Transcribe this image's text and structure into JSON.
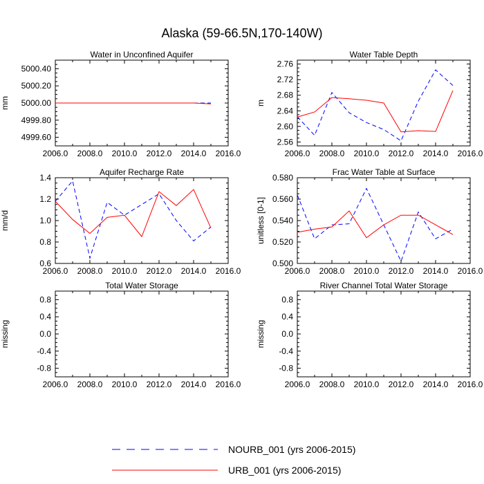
{
  "figure": {
    "title": "Alaska (59-66.5N,170-140W)"
  },
  "legend": {
    "placement": "bottom-center",
    "entries": [
      {
        "name": "NOURB_001 (yrs 2006-2015)",
        "color": "#0000ff",
        "style": "dashed"
      },
      {
        "name": "URB_001 (yrs 2006-2015)",
        "color": "#ff0000",
        "style": "solid"
      }
    ]
  },
  "chart_data": [
    {
      "type": "line",
      "title": "Water in Unconfined Aquifer",
      "xlabel": "",
      "ylabel": "mm",
      "xlim": [
        2006,
        2016
      ],
      "ylim": [
        4999.5,
        5000.5
      ],
      "xticks": [
        "2006.0",
        "2008.0",
        "2010.0",
        "2012.0",
        "2014.0",
        "2016.0"
      ],
      "yticks": [
        {
          "value": 4999.6,
          "label": "4999.60"
        },
        {
          "value": 4999.8,
          "label": "4999.80"
        },
        {
          "value": 5000.0,
          "label": "5000.00"
        },
        {
          "value": 5000.2,
          "label": "5000.20"
        },
        {
          "value": 5000.4,
          "label": "5000.40"
        }
      ],
      "x": [
        2006,
        2007,
        2008,
        2009,
        2010,
        2011,
        2012,
        2013,
        2014,
        2015
      ],
      "series": [
        {
          "name": "NOURB_001 (yrs 2006-2015)",
          "values": [
            5000.0,
            5000.0,
            5000.0,
            5000.0,
            5000.0,
            5000.0,
            5000.0,
            5000.0,
            5000.0,
            5000.0
          ]
        },
        {
          "name": "URB_001 (yrs 2006-2015)",
          "values": [
            5000.0,
            5000.0,
            5000.0,
            5000.0,
            5000.0,
            5000.0,
            5000.0,
            5000.0,
            5000.0,
            4999.99
          ]
        }
      ]
    },
    {
      "type": "line",
      "title": "Water Table Depth",
      "xlabel": "",
      "ylabel": "m",
      "xlim": [
        2006,
        2016
      ],
      "ylim": [
        2.55,
        2.77
      ],
      "xticks": [
        "2006.0",
        "2008.0",
        "2010.0",
        "2012.0",
        "2014.0",
        "2016.0"
      ],
      "yticks": [
        {
          "value": 2.56,
          "label": "2.56"
        },
        {
          "value": 2.6,
          "label": "2.60"
        },
        {
          "value": 2.64,
          "label": "2.64"
        },
        {
          "value": 2.68,
          "label": "2.68"
        },
        {
          "value": 2.72,
          "label": "2.72"
        },
        {
          "value": 2.76,
          "label": "2.76"
        }
      ],
      "x": [
        2006,
        2007,
        2008,
        2009,
        2010,
        2011,
        2012,
        2013,
        2014,
        2015
      ],
      "series": [
        {
          "name": "NOURB_001 (yrs 2006-2015)",
          "values": [
            2.625,
            2.577,
            2.687,
            2.635,
            2.61,
            2.592,
            2.563,
            2.665,
            2.745,
            2.705
          ]
        },
        {
          "name": "URB_001 (yrs 2006-2015)",
          "values": [
            2.624,
            2.637,
            2.674,
            2.671,
            2.667,
            2.66,
            2.586,
            2.589,
            2.587,
            2.692
          ]
        }
      ]
    },
    {
      "type": "line",
      "title": "Aquifer Recharge Rate",
      "xlabel": "",
      "ylabel": "mm/d",
      "xlim": [
        2006,
        2016
      ],
      "ylim": [
        0.6,
        1.4
      ],
      "xticks": [
        "2006.0",
        "2008.0",
        "2010.0",
        "2012.0",
        "2014.0",
        "2016.0"
      ],
      "yticks": [
        {
          "value": 0.6,
          "label": "0.6"
        },
        {
          "value": 0.8,
          "label": "0.8"
        },
        {
          "value": 1.0,
          "label": "1.0"
        },
        {
          "value": 1.2,
          "label": "1.2"
        },
        {
          "value": 1.4,
          "label": "1.4"
        }
      ],
      "x": [
        2006,
        2007,
        2008,
        2009,
        2010,
        2011,
        2012,
        2013,
        2014,
        2015
      ],
      "series": [
        {
          "name": "NOURB_001 (yrs 2006-2015)",
          "values": [
            1.18,
            1.37,
            0.65,
            1.17,
            1.05,
            1.15,
            1.25,
            1.0,
            0.81,
            0.94
          ]
        },
        {
          "name": "URB_001 (yrs 2006-2015)",
          "values": [
            1.18,
            1.01,
            0.88,
            1.03,
            1.05,
            0.85,
            1.27,
            1.14,
            1.29,
            0.93
          ]
        }
      ]
    },
    {
      "type": "line",
      "title": "Frac Water Table at Surface",
      "xlabel": "",
      "ylabel": "unitless [0-1]",
      "xlim": [
        2006,
        2016
      ],
      "ylim": [
        0.5,
        0.58
      ],
      "xticks": [
        "2006.0",
        "2008.0",
        "2010.0",
        "2012.0",
        "2014.0",
        "2016.0"
      ],
      "yticks": [
        {
          "value": 0.5,
          "label": "0.500"
        },
        {
          "value": 0.52,
          "label": "0.520"
        },
        {
          "value": 0.54,
          "label": "0.540"
        },
        {
          "value": 0.56,
          "label": "0.560"
        },
        {
          "value": 0.58,
          "label": "0.580"
        }
      ],
      "x": [
        2006,
        2007,
        2008,
        2009,
        2010,
        2011,
        2012,
        2013,
        2014,
        2015
      ],
      "series": [
        {
          "name": "NOURB_001 (yrs 2006-2015)",
          "values": [
            0.564,
            0.523,
            0.536,
            0.537,
            0.57,
            0.536,
            0.502,
            0.548,
            0.523,
            0.532
          ]
        },
        {
          "name": "URB_001 (yrs 2006-2015)",
          "values": [
            0.529,
            0.532,
            0.534,
            0.549,
            0.524,
            0.536,
            0.545,
            0.545,
            0.536,
            0.527
          ]
        }
      ]
    },
    {
      "type": "line",
      "title": "Total Water Storage",
      "xlabel": "",
      "ylabel": "missing",
      "xlim": [
        2006,
        2016
      ],
      "ylim": [
        -1.0,
        1.0
      ],
      "xticks": [
        "2006.0",
        "2008.0",
        "2010.0",
        "2012.0",
        "2014.0",
        "2016.0"
      ],
      "yticks": [
        {
          "value": -0.8,
          "label": "-0.8"
        },
        {
          "value": -0.4,
          "label": "-0.4"
        },
        {
          "value": 0.0,
          "label": "0.0"
        },
        {
          "value": 0.4,
          "label": "0.4"
        },
        {
          "value": 0.8,
          "label": "0.8"
        }
      ],
      "x": [],
      "series": []
    },
    {
      "type": "line",
      "title": "River Channel Total Water Storage",
      "xlabel": "",
      "ylabel": "missing",
      "xlim": [
        2006,
        2016
      ],
      "ylim": [
        -1.0,
        1.0
      ],
      "xticks": [
        "2006.0",
        "2008.0",
        "2010.0",
        "2012.0",
        "2014.0",
        "2016.0"
      ],
      "yticks": [
        {
          "value": -0.8,
          "label": "-0.8"
        },
        {
          "value": -0.4,
          "label": "-0.4"
        },
        {
          "value": 0.0,
          "label": "0.0"
        },
        {
          "value": 0.4,
          "label": "0.4"
        },
        {
          "value": 0.8,
          "label": "0.8"
        }
      ],
      "x": [],
      "series": []
    }
  ]
}
